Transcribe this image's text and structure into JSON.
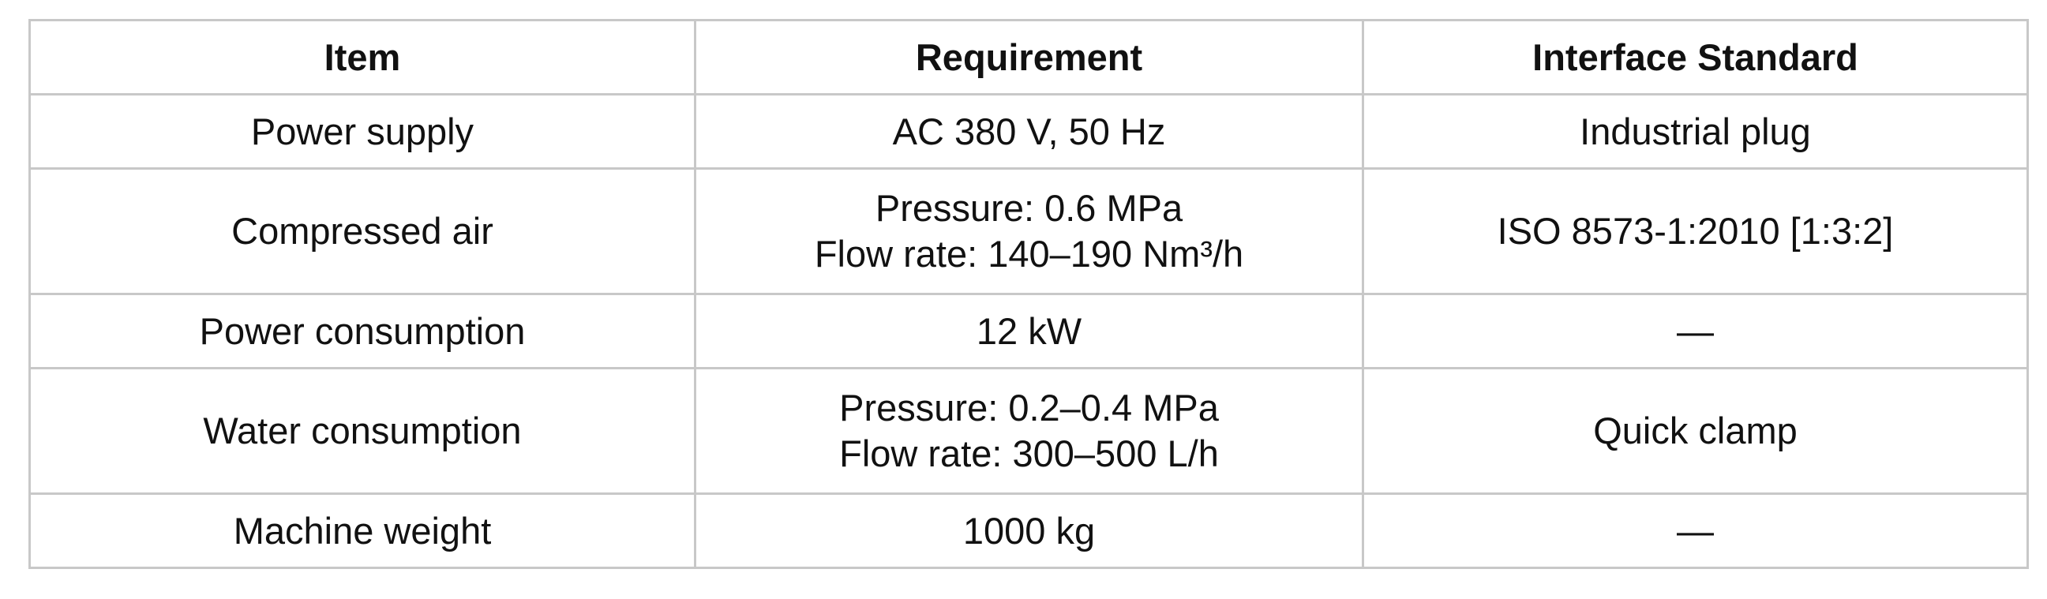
{
  "table": {
    "headers": [
      "Item",
      "Requirement",
      "Interface Standard"
    ],
    "rows": [
      {
        "item": "Power supply",
        "requirement": [
          "AC 380 V, 50 Hz"
        ],
        "interface": "Industrial plug"
      },
      {
        "item": "Compressed air",
        "requirement": [
          "Pressure: 0.6 MPa",
          "Flow rate: 140–190 Nm³/h"
        ],
        "interface": "ISO 8573-1:2010 [1:3:2]"
      },
      {
        "item": "Power consumption",
        "requirement": [
          "12 kW"
        ],
        "interface": "—"
      },
      {
        "item": "Water consumption",
        "requirement": [
          "Pressure: 0.2–0.4 MPa",
          "Flow rate: 300–500 L/h"
        ],
        "interface": "Quick clamp"
      },
      {
        "item": "Machine weight",
        "requirement": [
          "1000 kg"
        ],
        "interface": "—"
      }
    ]
  }
}
